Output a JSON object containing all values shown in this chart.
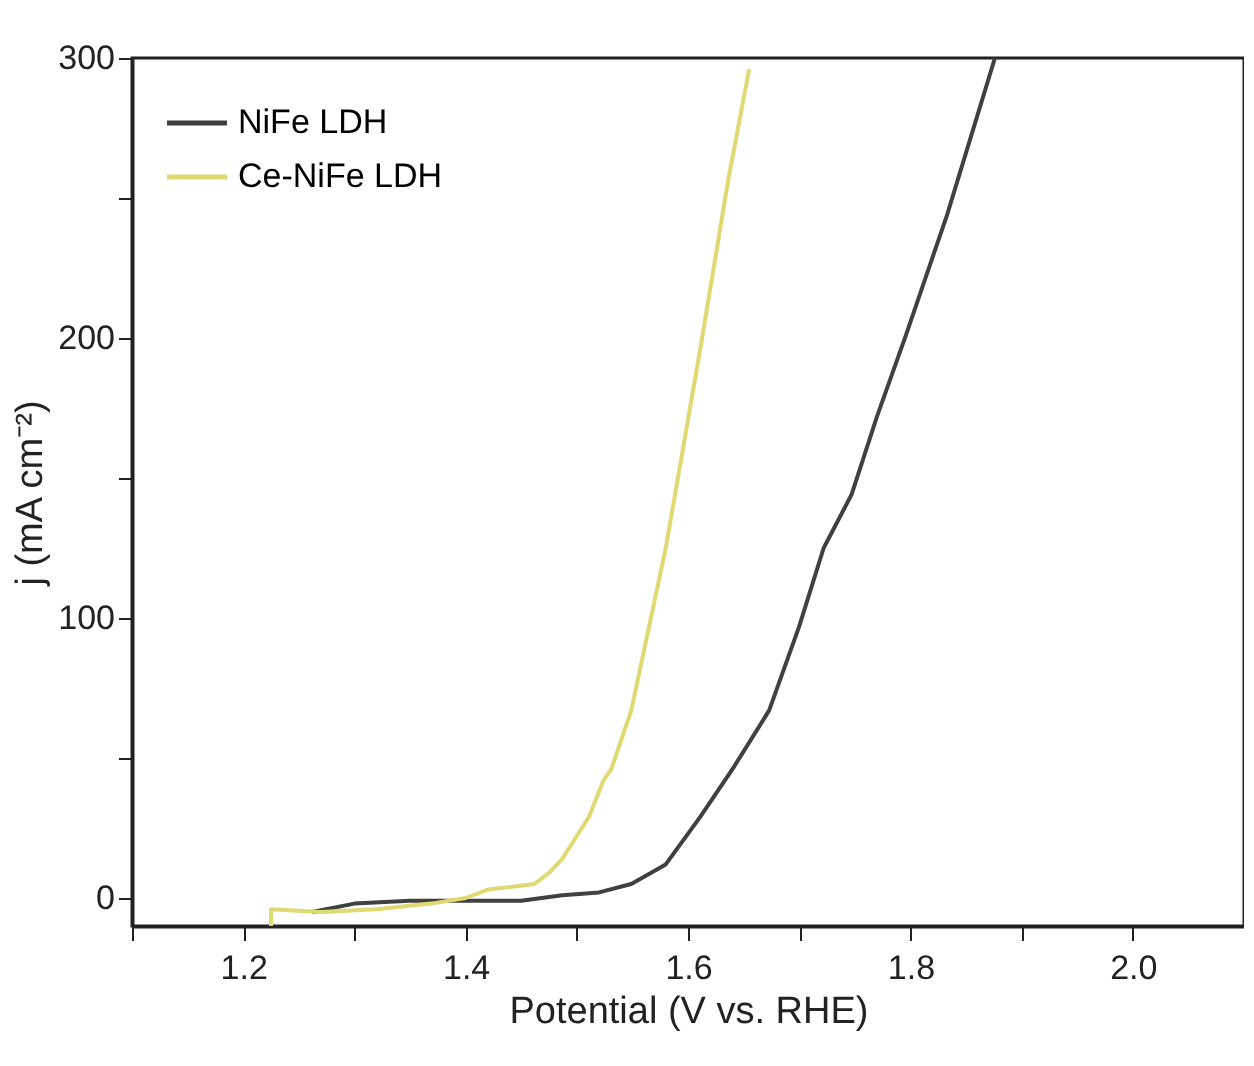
{
  "chart_data": {
    "type": "line",
    "xlabel": "Potential (V vs. RHE)",
    "ylabel": "j (mA cm⁻²)",
    "xlim": [
      1.1,
      2.1
    ],
    "ylim": [
      -10,
      300
    ],
    "xticks": [
      {
        "value": 1.1,
        "label": null
      },
      1.2,
      {
        "value": 1.3,
        "label": null
      },
      1.4,
      {
        "value": 1.5,
        "label": null
      },
      1.6,
      {
        "value": 1.7,
        "label": null
      },
      1.8,
      {
        "value": 1.9,
        "label": null
      },
      {
        "value": 2.0,
        "label": "2.0"
      }
    ],
    "yticks": [
      0,
      {
        "value": 50,
        "label": null
      },
      100,
      {
        "value": 150,
        "label": null
      },
      200,
      {
        "value": 250,
        "label": null
      },
      300
    ],
    "grid": false,
    "legend": "top left",
    "line_style": "solid",
    "marker": "none",
    "series": [
      {
        "name": "NiFe LDH",
        "color": "#404040",
        "x": [
          1.262,
          1.3,
          1.35,
          1.4,
          1.45,
          1.487,
          1.52,
          1.549,
          1.58,
          1.611,
          1.64,
          1.673,
          1.7,
          1.722,
          1.747,
          1.77,
          1.796,
          1.833,
          1.876
        ],
        "values": [
          -5,
          -2,
          -1,
          -1,
          -1,
          1,
          2,
          5,
          12,
          29,
          46,
          67,
          97,
          125,
          144,
          172,
          201,
          244,
          300
        ]
      },
      {
        "name": "Ce-NiFe LDH",
        "color": "#e0d870",
        "x": [
          1.225,
          1.225,
          1.27,
          1.32,
          1.369,
          1.4,
          1.42,
          1.462,
          1.475,
          1.487,
          1.511,
          1.524,
          1.531,
          1.549,
          1.58,
          1.611,
          1.636,
          1.655
        ],
        "values": [
          -10,
          -4,
          -5,
          -4,
          -2,
          0,
          3,
          5,
          9,
          14,
          29,
          42,
          46,
          67,
          125,
          196,
          256,
          296
        ]
      }
    ]
  }
}
